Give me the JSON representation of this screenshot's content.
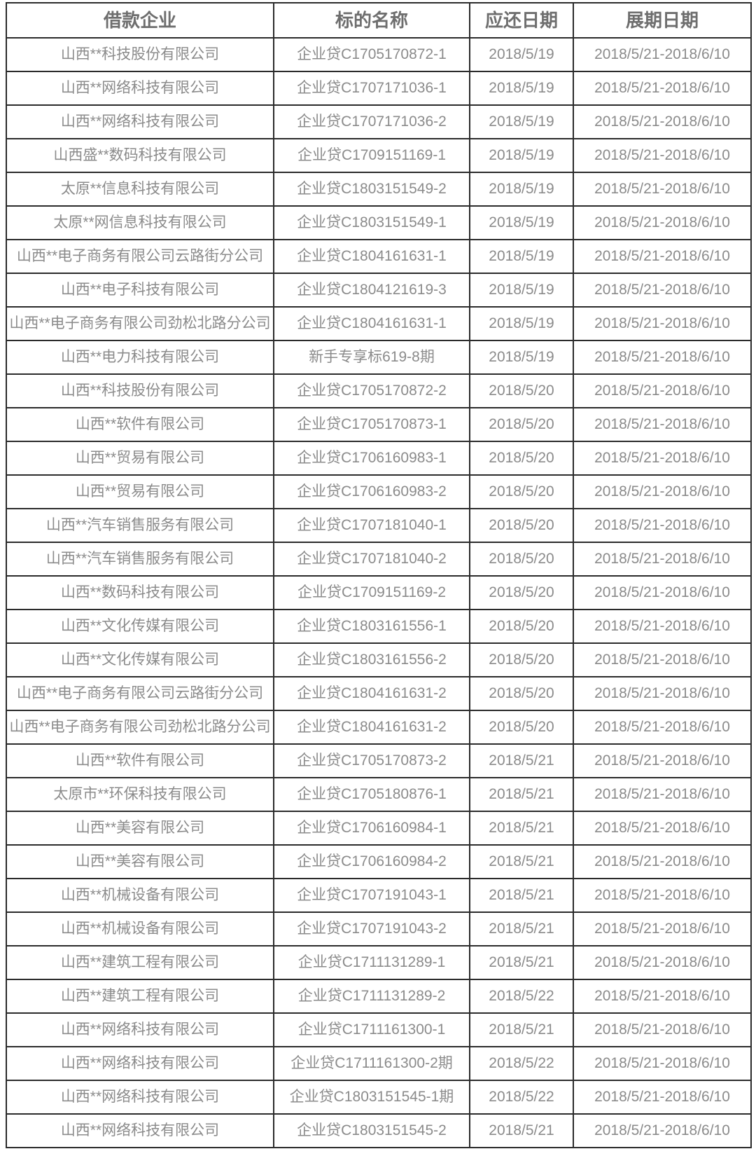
{
  "colors": {
    "border": "#2b2b2b",
    "header_text": "#6e6e6e",
    "body_text": "#8b8b8b",
    "background": "#ffffff"
  },
  "table": {
    "columns": [
      "借款企业",
      "标的名称",
      "应还日期",
      "展期日期"
    ],
    "rows": [
      [
        "山西**科技股份有限公司",
        "企业贷C1705170872-1",
        "2018/5/19",
        "2018/5/21-2018/6/10"
      ],
      [
        "山西**网络科技有限公司",
        "企业贷C1707171036-1",
        "2018/5/19",
        "2018/5/21-2018/6/10"
      ],
      [
        "山西**网络科技有限公司",
        "企业贷C1707171036-2",
        "2018/5/19",
        "2018/5/21-2018/6/10"
      ],
      [
        "山西盛**数码科技有限公司",
        "企业贷C1709151169-1",
        "2018/5/19",
        "2018/5/21-2018/6/10"
      ],
      [
        "太原**信息科技有限公司",
        "企业贷C1803151549-2",
        "2018/5/19",
        "2018/5/21-2018/6/10"
      ],
      [
        "太原**网信息科技有限公司",
        "企业贷C1803151549-1",
        "2018/5/19",
        "2018/5/21-2018/6/10"
      ],
      [
        "山西**电子商务有限公司云路街分公司",
        "企业贷C1804161631-1",
        "2018/5/19",
        "2018/5/21-2018/6/10"
      ],
      [
        "山西**电子科技有限公司",
        "企业贷C1804121619-3",
        "2018/5/19",
        "2018/5/21-2018/6/10"
      ],
      [
        "山西**电子商务有限公司劲松北路分公司",
        "企业贷C1804161631-1",
        "2018/5/19",
        "2018/5/21-2018/6/10"
      ],
      [
        "山西**电力科技有限公司",
        "新手专享标619-8期",
        "2018/5/19",
        "2018/5/21-2018/6/10"
      ],
      [
        "山西**科技股份有限公司",
        "企业贷C1705170872-2",
        "2018/5/20",
        "2018/5/21-2018/6/10"
      ],
      [
        "山西**软件有限公司",
        "企业贷C1705170873-1",
        "2018/5/20",
        "2018/5/21-2018/6/10"
      ],
      [
        "山西**贸易有限公司",
        "企业贷C1706160983-1",
        "2018/5/20",
        "2018/5/21-2018/6/10"
      ],
      [
        "山西**贸易有限公司",
        "企业贷C1706160983-2",
        "2018/5/20",
        "2018/5/21-2018/6/10"
      ],
      [
        "山西**汽车销售服务有限公司",
        "企业贷C1707181040-1",
        "2018/5/20",
        "2018/5/21-2018/6/10"
      ],
      [
        "山西**汽车销售服务有限公司",
        "企业贷C1707181040-2",
        "2018/5/20",
        "2018/5/21-2018/6/10"
      ],
      [
        "山西**数码科技有限公司",
        "企业贷C1709151169-2",
        "2018/5/20",
        "2018/5/21-2018/6/10"
      ],
      [
        "山西**文化传媒有限公司",
        "企业贷C1803161556-1",
        "2018/5/20",
        "2018/5/21-2018/6/10"
      ],
      [
        "山西**文化传媒有限公司",
        "企业贷C1803161556-2",
        "2018/5/20",
        "2018/5/21-2018/6/10"
      ],
      [
        "山西**电子商务有限公司云路街分公司",
        "企业贷C1804161631-2",
        "2018/5/20",
        "2018/5/21-2018/6/10"
      ],
      [
        "山西**电子商务有限公司劲松北路分公司",
        "企业贷C1804161631-2",
        "2018/5/20",
        "2018/5/21-2018/6/10"
      ],
      [
        "山西**软件有限公司",
        "企业贷C1705170873-2",
        "2018/5/21",
        "2018/5/21-2018/6/10"
      ],
      [
        "太原市**环保科技有限公司",
        "企业贷C1705180876-1",
        "2018/5/21",
        "2018/5/21-2018/6/10"
      ],
      [
        "山西**美容有限公司",
        "企业贷C1706160984-1",
        "2018/5/21",
        "2018/5/21-2018/6/10"
      ],
      [
        "山西**美容有限公司",
        "企业贷C1706160984-2",
        "2018/5/21",
        "2018/5/21-2018/6/10"
      ],
      [
        "山西**机械设备有限公司",
        "企业贷C1707191043-1",
        "2018/5/21",
        "2018/5/21-2018/6/10"
      ],
      [
        "山西**机械设备有限公司",
        "企业贷C1707191043-2",
        "2018/5/21",
        "2018/5/21-2018/6/10"
      ],
      [
        "山西**建筑工程有限公司",
        "企业贷C1711131289-1",
        "2018/5/21",
        "2018/5/21-2018/6/10"
      ],
      [
        "山西**建筑工程有限公司",
        "企业贷C1711131289-2",
        "2018/5/22",
        "2018/5/21-2018/6/10"
      ],
      [
        "山西**网络科技有限公司",
        "企业贷C1711161300-1",
        "2018/5/21",
        "2018/5/21-2018/6/10"
      ],
      [
        "山西**网络科技有限公司",
        "企业贷C1711161300-2期",
        "2018/5/22",
        "2018/5/21-2018/6/10"
      ],
      [
        "山西**网络科技有限公司",
        "企业贷C1803151545-1期",
        "2018/5/22",
        "2018/5/21-2018/6/10"
      ],
      [
        "山西**网络科技有限公司",
        "企业贷C1803151545-2",
        "2018/5/21",
        "2018/5/21-2018/6/10"
      ]
    ]
  }
}
